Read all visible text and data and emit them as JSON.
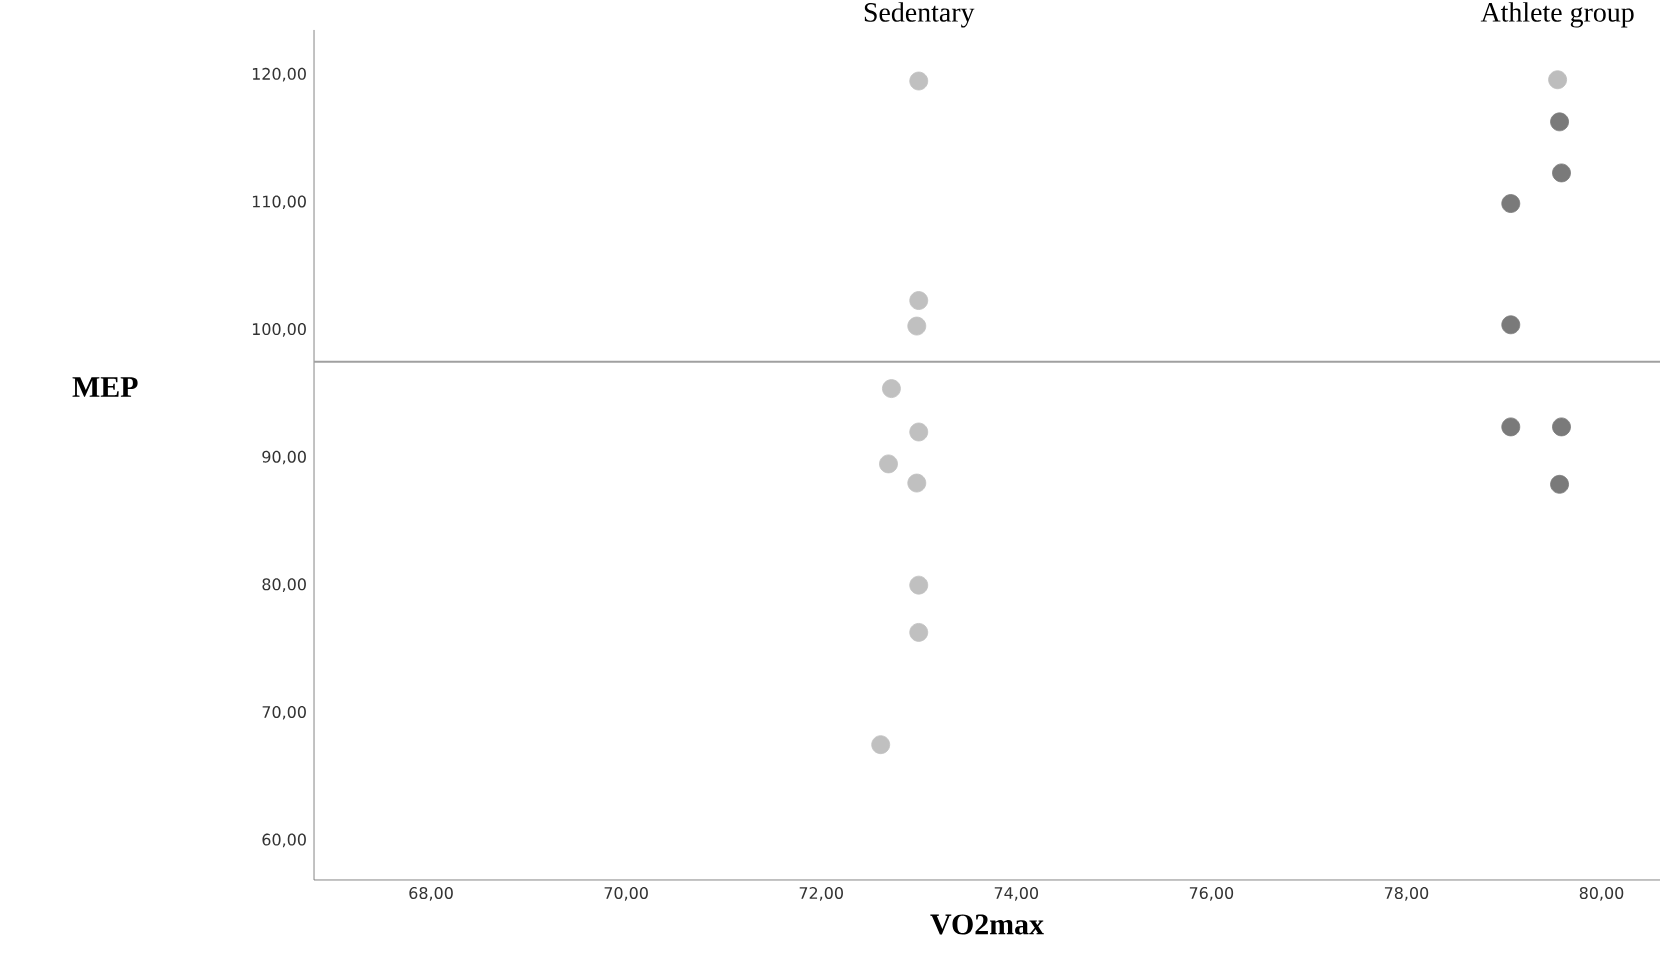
{
  "chart_data": {
    "type": "scatter",
    "xlabel": "VO2max",
    "ylabel": "MEP",
    "xlim": [
      66.8,
      80.6
    ],
    "ylim": [
      56.9,
      123.5
    ],
    "xticks": [
      {
        "value": 68,
        "label": "68,00"
      },
      {
        "value": 70,
        "label": "70,00"
      },
      {
        "value": 72,
        "label": "72,00"
      },
      {
        "value": 74,
        "label": "74,00"
      },
      {
        "value": 76,
        "label": "76,00"
      },
      {
        "value": 78,
        "label": "78,00"
      },
      {
        "value": 80,
        "label": "80,00"
      }
    ],
    "yticks": [
      {
        "value": 60,
        "label": "60,00"
      },
      {
        "value": 70,
        "label": "70,00"
      },
      {
        "value": 80,
        "label": "80,00"
      },
      {
        "value": 90,
        "label": "90,00"
      },
      {
        "value": 100,
        "label": "100,00"
      },
      {
        "value": 110,
        "label": "110,00"
      },
      {
        "value": 120,
        "label": "120,00"
      }
    ],
    "marker": "circle",
    "ref_lines": [
      {
        "axis": "y",
        "value": 97.5,
        "color": "#a0a0a0"
      }
    ],
    "series": [
      {
        "name": "Sedentary",
        "color": "#c0c0c0",
        "x": [
          73.0,
          73.0,
          72.98,
          72.72,
          73.0,
          72.69,
          72.98,
          73.0,
          73.0,
          72.61
        ],
        "values": [
          119.5,
          102.3,
          100.3,
          95.4,
          92.0,
          89.5,
          88.0,
          80.0,
          76.3,
          67.5
        ]
      },
      {
        "name": "Athlete group",
        "color": "#7a7a7a",
        "colors": [
          "#bdbdbd",
          "#7a7a7a",
          "#7a7a7a",
          "#7a7a7a",
          "#7a7a7a",
          "#7a7a7a",
          "#7a7a7a",
          "#7a7a7a"
        ],
        "x": [
          79.55,
          79.57,
          79.59,
          79.07,
          79.07,
          79.07,
          79.59,
          79.57
        ],
        "values": [
          119.6,
          116.3,
          112.3,
          109.9,
          100.4,
          92.4,
          92.4,
          87.9
        ]
      }
    ]
  }
}
